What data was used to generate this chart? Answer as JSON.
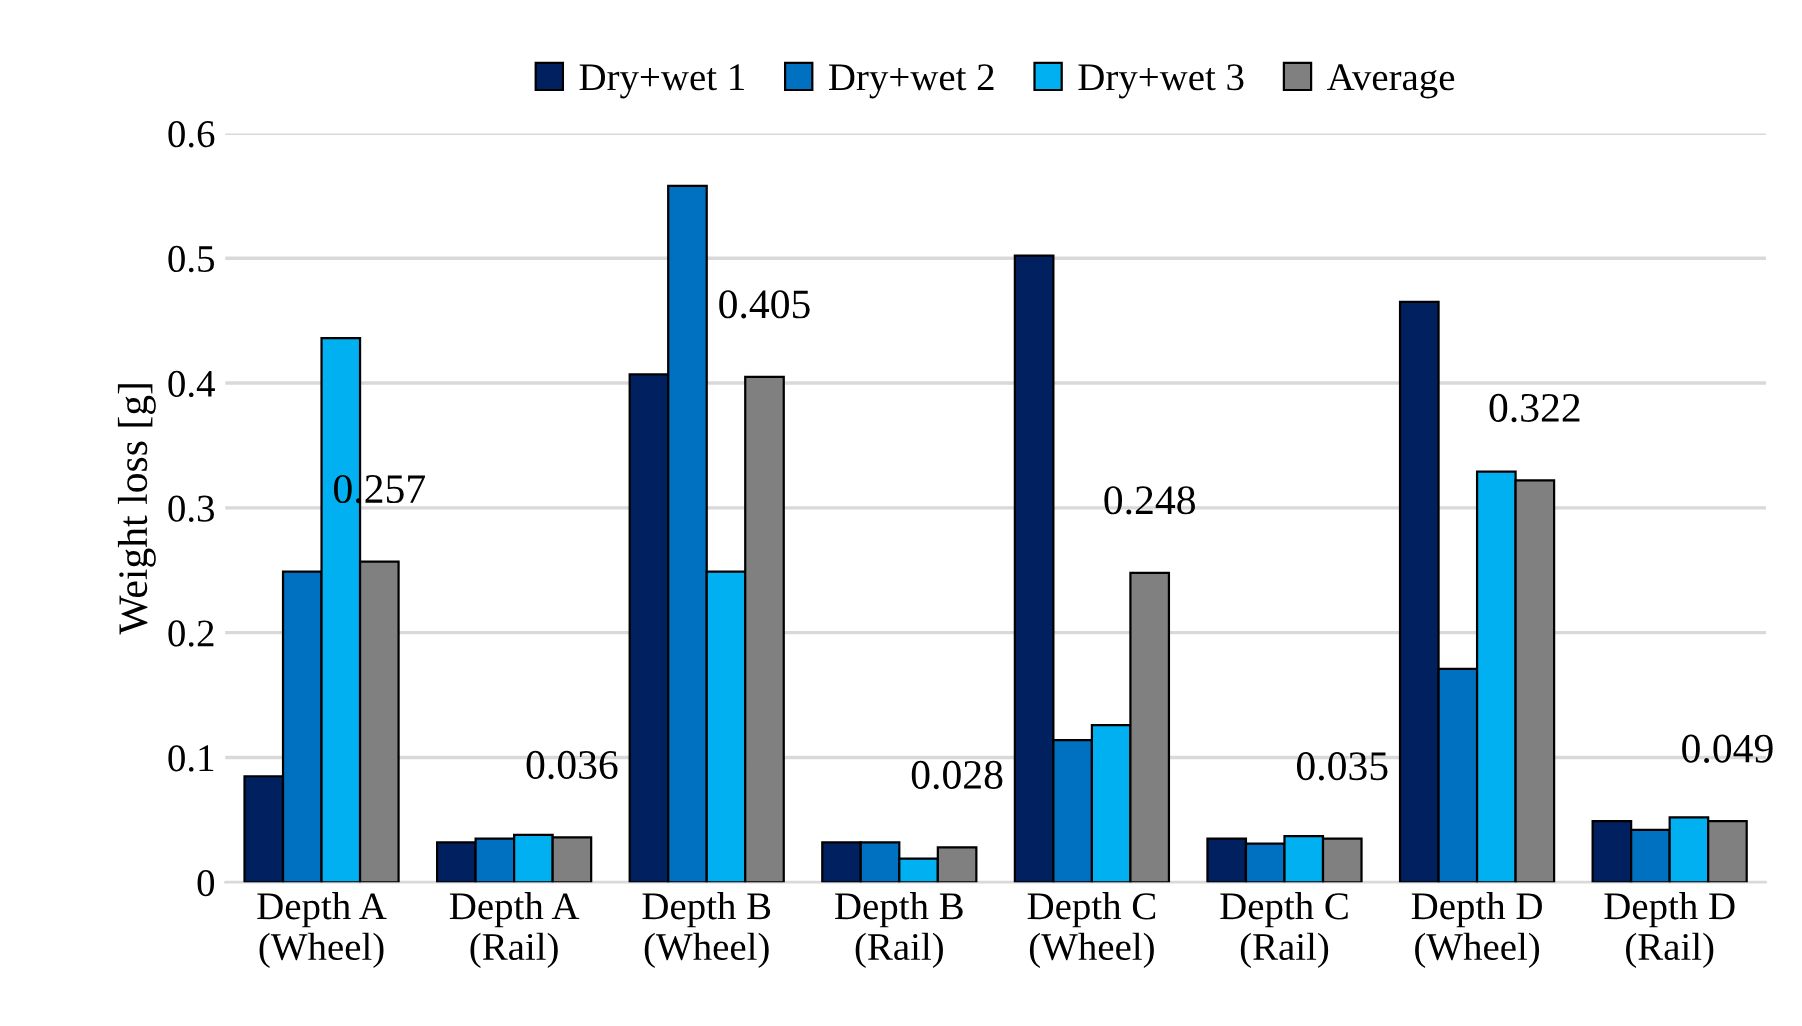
{
  "chart_data": {
    "type": "bar",
    "ylabel": "Weight loss [g]",
    "categories": [
      "Depth A\n(Wheel)",
      "Depth A\n(Rail)",
      "Depth B\n(Wheel)",
      "Depth B\n(Rail)",
      "Depth C\n(Wheel)",
      "Depth C\n(Rail)",
      "Depth D\n(Wheel)",
      "Depth D\n(Rail)"
    ],
    "series": [
      {
        "name": "Dry+wet 1",
        "color": "#002060",
        "values": [
          0.085,
          0.032,
          0.407,
          0.032,
          0.502,
          0.035,
          0.465,
          0.049
        ]
      },
      {
        "name": "Dry+wet 2",
        "color": "#0070c0",
        "values": [
          0.249,
          0.035,
          0.558,
          0.032,
          0.114,
          0.031,
          0.171,
          0.042
        ]
      },
      {
        "name": "Dry+wet 3",
        "color": "#00b0f0",
        "values": [
          0.436,
          0.038,
          0.249,
          0.019,
          0.126,
          0.037,
          0.329,
          0.052
        ]
      },
      {
        "name": "Average",
        "color": "#808080",
        "values": [
          0.257,
          0.036,
          0.405,
          0.028,
          0.248,
          0.035,
          0.322,
          0.049
        ],
        "value_labels": [
          "0.257",
          "0.036",
          "0.405",
          "0.028",
          "0.248",
          "0.035",
          "0.322",
          "0.049"
        ]
      }
    ],
    "ylim": [
      0,
      0.6
    ],
    "yticks": [
      {
        "value": 0,
        "label": "0"
      },
      0.1,
      0.2,
      0.3,
      0.4,
      0.5,
      0.6
    ],
    "grid": "y",
    "legend": "top"
  }
}
